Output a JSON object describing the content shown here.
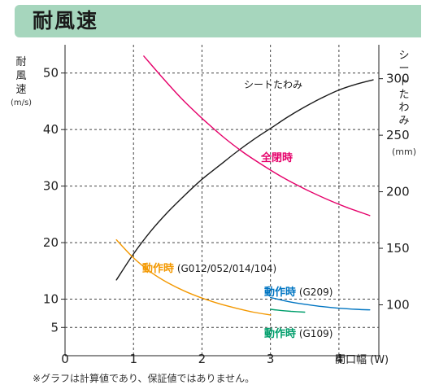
{
  "page_title": "耐風速",
  "footnote": "※グラフは計算値であり、保証値ではありません。",
  "chart_data": {
    "type": "line",
    "title": "",
    "xlabel": "開口幅 (W)",
    "xlim": [
      0,
      4.5
    ],
    "x_ticks": [
      "0",
      "1",
      "2",
      "3",
      "4"
    ],
    "left_axis": {
      "label": "耐風速",
      "unit": "(m/s)",
      "ylim": [
        0,
        55
      ],
      "ticks": [
        "5",
        "10",
        "20",
        "30",
        "40",
        "50"
      ]
    },
    "right_axis": {
      "label": "シートたわみ",
      "unit": "(mm)",
      "ylim": [
        55,
        330
      ],
      "ticks": [
        "100",
        "150",
        "200",
        "250",
        "300"
      ]
    },
    "series": [
      {
        "name": "シートたわみ",
        "axis": "right",
        "color": "#1a1a1a",
        "x": [
          0.75,
          1.0,
          1.25,
          1.5,
          1.75,
          2.0,
          2.25,
          2.5,
          2.75,
          3.0,
          3.25,
          3.5,
          3.75,
          4.0,
          4.25,
          4.5
        ],
        "y": [
          122,
          145,
          165,
          182,
          197,
          211,
          223,
          235,
          246,
          256,
          266,
          275,
          283,
          290,
          295,
          299
        ]
      },
      {
        "name": "全閉時",
        "axis": "left",
        "color": "#e5006a",
        "x": [
          1.15,
          1.4,
          1.7,
          2.0,
          2.3,
          2.6,
          2.9,
          3.2,
          3.5,
          3.8,
          4.1,
          4.45
        ],
        "y": [
          53,
          49.5,
          45.5,
          42,
          38.8,
          36,
          33.6,
          31.4,
          29.5,
          27.8,
          26.3,
          24.8
        ]
      },
      {
        "name": "動作時 (G012/052/014/104)",
        "axis": "left",
        "color": "#f39800",
        "x": [
          0.75,
          1.0,
          1.25,
          1.5,
          1.75,
          2.0,
          2.25,
          2.5,
          2.75,
          3.0
        ],
        "y": [
          20.5,
          17.3,
          14.8,
          12.9,
          11.4,
          10.2,
          9.2,
          8.4,
          7.7,
          7.2
        ]
      },
      {
        "name": "動作時 (G209)",
        "axis": "left",
        "color": "#0075c2",
        "x": [
          3.0,
          3.25,
          3.5,
          3.75,
          4.0,
          4.25,
          4.45
        ],
        "y": [
          10.3,
          9.6,
          9.1,
          8.7,
          8.4,
          8.2,
          8.1
        ]
      },
      {
        "name": "動作時 (G109)",
        "axis": "left",
        "color": "#009e6b",
        "x": [
          3.0,
          3.15,
          3.3,
          3.5
        ],
        "y": [
          8.2,
          8.0,
          7.85,
          7.7
        ]
      }
    ],
    "labels": {
      "sheet": "シートたわみ",
      "full_closed": "全閉時",
      "op_prefix": "動作時",
      "op_main_suffix": " (G012/052/014/104)",
      "op_g209_suffix": " (G209)",
      "op_g109_suffix": " (G109)"
    },
    "grid": true,
    "legend": "inline"
  }
}
